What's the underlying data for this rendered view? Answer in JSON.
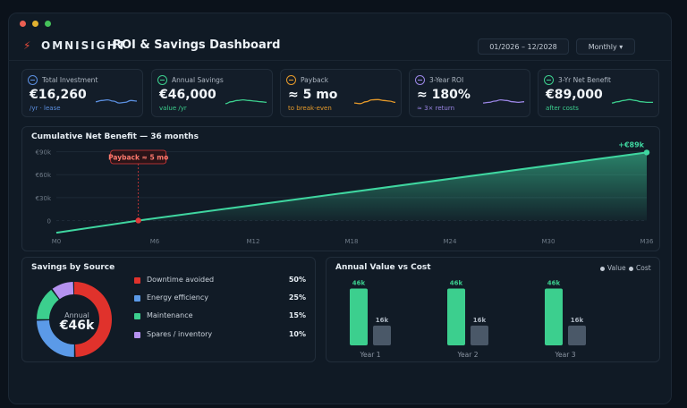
{
  "window_controls": [
    {
      "name": "close",
      "color": "#ec5f52"
    },
    {
      "name": "minimize",
      "color": "#e2b130"
    },
    {
      "name": "maximize",
      "color": "#45c25a"
    }
  ],
  "header": {
    "logo_icon": "lightning-bolt-icon",
    "logo_glyph": "⚡",
    "logo_text": "OMNISIGHT",
    "title": "ROI & Savings Dashboard",
    "date_range": "01/2026 – 12/2028",
    "period_label": "Monthly ▾"
  },
  "kpis": [
    {
      "label": "Total Investment",
      "value": "€16,260",
      "sub": "/yr · lease",
      "color": "#5b8fe0",
      "spark": [
        0.45,
        0.55,
        0.6,
        0.5,
        0.35,
        0.4,
        0.55,
        0.5
      ]
    },
    {
      "label": "Annual Savings",
      "value": "€46,000",
      "sub": "value /yr",
      "color": "#3ccf8e",
      "spark": [
        0.3,
        0.45,
        0.55,
        0.6,
        0.55,
        0.5,
        0.45,
        0.4
      ]
    },
    {
      "label": "Payback",
      "value": "≈ 5 mo",
      "sub": "to break-even",
      "color": "#e69a2a",
      "spark": [
        0.35,
        0.3,
        0.45,
        0.6,
        0.62,
        0.55,
        0.5,
        0.4
      ]
    },
    {
      "label": "3-Year ROI",
      "value": "≈ 180%",
      "sub": "≈ 3× return",
      "color": "#9b86e6",
      "spark": [
        0.35,
        0.4,
        0.5,
        0.6,
        0.55,
        0.45,
        0.4,
        0.45
      ]
    },
    {
      "label": "3-Yr Net Benefit",
      "value": "€89,000",
      "sub": "after costs",
      "color": "#3ccf8e",
      "spark": [
        0.35,
        0.45,
        0.55,
        0.62,
        0.55,
        0.45,
        0.4,
        0.4
      ]
    }
  ],
  "cumulative": {
    "title": "Cumulative Net Benefit — 36 months",
    "payback_label": "Payback ≈ 5 mo",
    "end_label": "+€89k",
    "line_color": "#3fd6a0",
    "marker_color": "#e03a3a"
  },
  "savings_source": {
    "title": "Savings by Source",
    "center_label": "Annual",
    "center_value": "€46k",
    "items": [
      {
        "name": "Downtime avoided",
        "pct": "50%",
        "value": 50,
        "color": "#e0322c"
      },
      {
        "name": "Energy efficiency",
        "pct": "25%",
        "value": 25,
        "color": "#5b9ae8"
      },
      {
        "name": "Maintenance",
        "pct": "15%",
        "value": 15,
        "color": "#3ccf8e"
      },
      {
        "name": "Spares / inventory",
        "pct": "10%",
        "value": 10,
        "color": "#b592f0"
      }
    ]
  },
  "annual_value": {
    "title": "Annual Value vs Cost",
    "legend_value": "Value",
    "legend_cost": "Cost",
    "value_color": "#3ccf8e",
    "cost_color": "#4a5868"
  },
  "chart_data": [
    {
      "type": "line",
      "title": "Cumulative Net Benefit — 36 months",
      "x": [
        0,
        5,
        36
      ],
      "y": [
        -16,
        0,
        89
      ],
      "x_ticks": [
        "M0",
        "M6",
        "M12",
        "M18",
        "M24",
        "M30",
        "M36"
      ],
      "x_tick_values": [
        0,
        6,
        12,
        18,
        24,
        30,
        36
      ],
      "y_ticks": [
        "€90k",
        "€60k",
        "€30k",
        "0"
      ],
      "y_tick_values": [
        90,
        60,
        30,
        0
      ],
      "ylim": [
        -17,
        93
      ],
      "xlim": [
        0,
        36
      ],
      "annotations": [
        {
          "x": 5,
          "text": "Payback ≈ 5 mo"
        },
        {
          "x": 36,
          "text": "+€89k"
        }
      ]
    },
    {
      "type": "pie",
      "title": "Savings by Source",
      "categories": [
        "Downtime avoided",
        "Energy efficiency",
        "Maintenance",
        "Spares / inventory"
      ],
      "values": [
        50,
        25,
        15,
        10
      ]
    },
    {
      "type": "bar",
      "title": "Annual Value vs Cost",
      "categories": [
        "Year 1",
        "Year 2",
        "Year 3"
      ],
      "series": [
        {
          "name": "Value",
          "values": [
            46,
            46,
            46
          ],
          "labels": [
            "46k",
            "46k",
            "46k"
          ]
        },
        {
          "name": "Cost",
          "values": [
            16,
            16,
            16
          ],
          "labels": [
            "16k",
            "16k",
            "16k"
          ]
        }
      ],
      "ylim": [
        0,
        50
      ]
    }
  ]
}
